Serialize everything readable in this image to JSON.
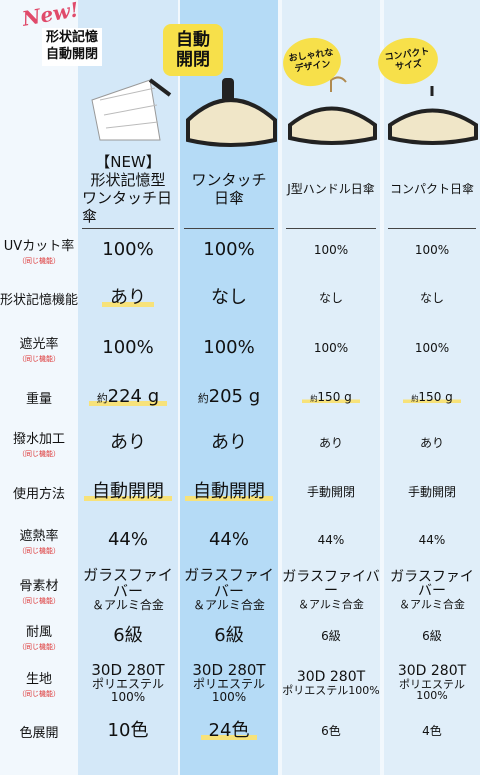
{
  "header": {
    "badge_new": "New!",
    "badge_main": [
      "形状記憶",
      "自動開閉"
    ]
  },
  "columns": [
    {
      "badge": null,
      "name": [
        "【NEW】",
        "形状記憶型",
        "ワンタッチ日傘"
      ]
    },
    {
      "badge": [
        "自動",
        "開閉"
      ],
      "name": [
        "ワンタッチ",
        "日傘"
      ]
    },
    {
      "badge": [
        "おしゃれな",
        "デザイン"
      ],
      "name": [
        "J型ハンドル日傘"
      ]
    },
    {
      "badge": [
        "コンパクト",
        "サイズ"
      ],
      "name": [
        "コンパクト日傘"
      ]
    }
  ],
  "rows": [
    {
      "label": "UVカット率",
      "note": "（同じ機能）",
      "cells": [
        "100%",
        "100%",
        "100%",
        "100%"
      ]
    },
    {
      "label": "形状記憶機能",
      "note": null,
      "cells": [
        "あり",
        "なし",
        "なし",
        "なし"
      ],
      "highlight": [
        true,
        false,
        false,
        false
      ]
    },
    {
      "label": "遮光率",
      "note": "（同じ機能）",
      "cells": [
        "100%",
        "100%",
        "100%",
        "100%"
      ]
    },
    {
      "label": "重量",
      "note": null,
      "cells": [
        {
          "small": "約",
          "text": "224 g"
        },
        {
          "small": "約",
          "text": "205 g"
        },
        {
          "small": "約",
          "text": "150 g"
        },
        {
          "small": "約",
          "text": "150 g"
        }
      ],
      "highlight": [
        true,
        false,
        true,
        true
      ]
    },
    {
      "label": "撥水加工",
      "note": "（同じ機能）",
      "cells": [
        "あり",
        "あり",
        "あり",
        "あり"
      ]
    },
    {
      "label": "使用方法",
      "note": null,
      "cells": [
        "自動開閉",
        "自動開閉",
        "手動開閉",
        "手動開閉"
      ],
      "highlight": [
        true,
        true,
        false,
        false
      ]
    },
    {
      "label": "遮熱率",
      "note": "（同じ機能）",
      "cells": [
        "44%",
        "44%",
        "44%",
        "44%"
      ]
    },
    {
      "label": "骨素材",
      "note": "（同じ機能）",
      "cells": [
        [
          "ガラスファイバー",
          "＆アルミ合金"
        ],
        [
          "ガラスファイバー",
          "＆アルミ合金"
        ],
        [
          "ガラスファイバー",
          "＆アルミ合金"
        ],
        [
          "ガラスファイバー",
          "＆アルミ合金"
        ]
      ]
    },
    {
      "label": "耐風",
      "note": "（同じ機能）",
      "cells": [
        "6級",
        "6級",
        "6級",
        "6級"
      ]
    },
    {
      "label": "生地",
      "note": "（同じ機能）",
      "cells": [
        [
          "30D 280T",
          "ポリエステル100%"
        ],
        [
          "30D 280T",
          "ポリエステル100%"
        ],
        [
          "30D 280T",
          "ポリエステル100%"
        ],
        [
          "30D 280T",
          "ポリエステル100%"
        ]
      ]
    },
    {
      "label": "色展開",
      "note": null,
      "cells": [
        "10色",
        "24色",
        "6色",
        "4色"
      ],
      "highlight": [
        false,
        true,
        false,
        false
      ]
    }
  ]
}
